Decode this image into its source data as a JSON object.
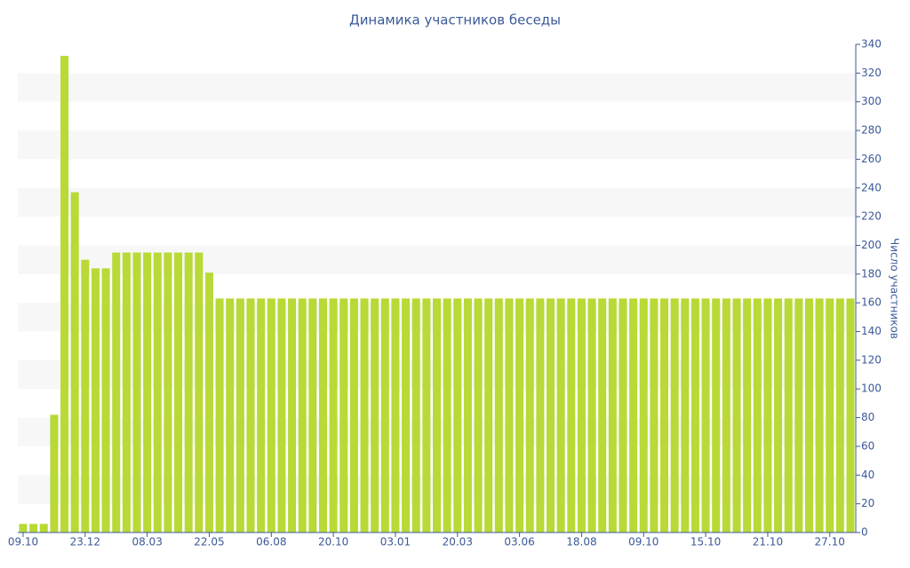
{
  "chart_data": {
    "type": "bar",
    "title": "Динамика участников беседы",
    "y_axis_label": "Число участников",
    "y_axis_side": "right",
    "categories": [
      "09.10",
      null,
      null,
      null,
      null,
      null,
      "23.12",
      null,
      null,
      null,
      null,
      null,
      "08.03",
      null,
      null,
      null,
      null,
      null,
      "22.05",
      null,
      null,
      null,
      null,
      null,
      "06.08",
      null,
      null,
      null,
      null,
      null,
      "20.10",
      null,
      null,
      null,
      null,
      null,
      "03.01",
      null,
      null,
      null,
      null,
      null,
      "20.03",
      null,
      null,
      null,
      null,
      null,
      "03.06",
      null,
      null,
      null,
      null,
      null,
      "18.08",
      null,
      null,
      null,
      null,
      null,
      "09.10",
      null,
      null,
      null,
      null,
      null,
      "15.10",
      null,
      null,
      null,
      null,
      null,
      "21.10",
      null,
      null,
      null,
      null,
      null,
      "27.10",
      null,
      null
    ],
    "values": [
      6,
      6,
      6,
      82,
      332,
      237,
      190,
      184,
      184,
      195,
      195,
      195,
      195,
      195,
      195,
      195,
      195,
      195,
      181,
      163,
      163,
      163,
      163,
      163,
      163,
      163,
      163,
      163,
      163,
      163,
      163,
      163,
      163,
      163,
      163,
      163,
      163,
      163,
      163,
      163,
      163,
      163,
      163,
      163,
      163,
      163,
      163,
      163,
      163,
      163,
      163,
      163,
      163,
      163,
      163,
      163,
      163,
      163,
      163,
      163,
      163,
      163,
      163,
      163,
      163,
      163,
      163,
      163,
      163,
      163,
      163,
      163,
      163,
      163,
      163,
      163,
      163,
      163,
      163,
      163,
      163
    ],
    "color": "#b8d936",
    "ylim": [
      0,
      340
    ],
    "yticks": [
      0,
      20,
      40,
      60,
      80,
      100,
      120,
      140,
      160,
      180,
      200,
      220,
      240,
      260,
      280,
      300,
      320,
      340
    ],
    "grid": "bands"
  }
}
